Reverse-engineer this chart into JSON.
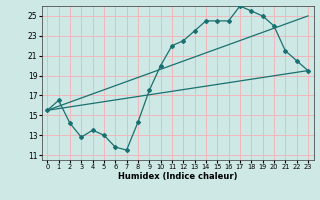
{
  "xlabel": "Humidex (Indice chaleur)",
  "xlim": [
    -0.5,
    23.5
  ],
  "ylim": [
    10.5,
    26.0
  ],
  "xticks": [
    0,
    1,
    2,
    3,
    4,
    5,
    6,
    7,
    8,
    9,
    10,
    11,
    12,
    13,
    14,
    15,
    16,
    17,
    18,
    19,
    20,
    21,
    22,
    23
  ],
  "yticks": [
    11,
    13,
    15,
    17,
    19,
    21,
    23,
    25
  ],
  "bg_color": "#cde8e5",
  "grid_color": "#f0b8bb",
  "line_color": "#1a7070",
  "line1_x": [
    0,
    1,
    2,
    3,
    4,
    5,
    6,
    7,
    8,
    9,
    10,
    11,
    12,
    13,
    14,
    15,
    16,
    17,
    18,
    19,
    20,
    21,
    22,
    23
  ],
  "line1_y": [
    15.5,
    16.5,
    14.2,
    12.8,
    13.5,
    13.0,
    11.8,
    11.5,
    14.3,
    17.5,
    20.0,
    22.0,
    22.5,
    23.5,
    24.5,
    24.5,
    24.5,
    26.0,
    25.5,
    25.0,
    24.0,
    21.5,
    20.5,
    19.5
  ],
  "line2_x": [
    0,
    23
  ],
  "line2_y": [
    15.5,
    19.5
  ],
  "line3_x": [
    0,
    23
  ],
  "line3_y": [
    15.5,
    25.0
  ]
}
